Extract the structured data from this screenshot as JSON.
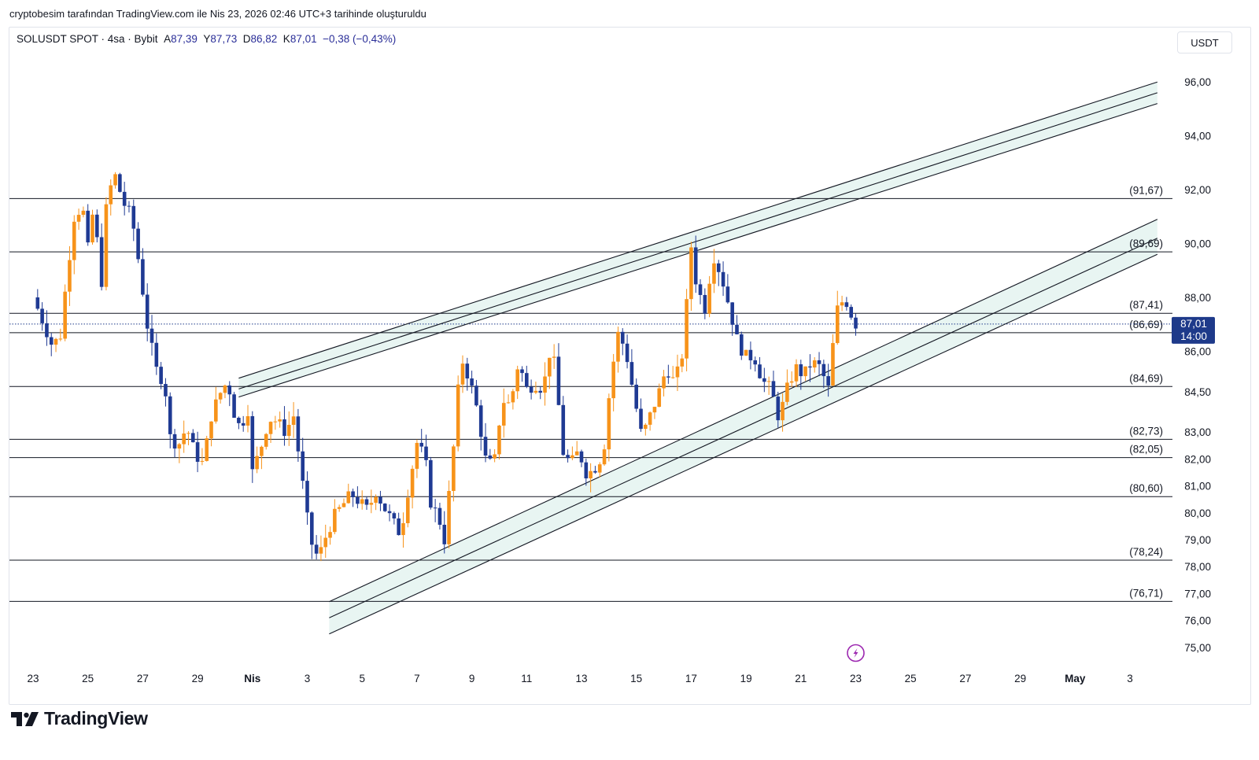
{
  "caption": "cryptobesim tarafından TradingView.com ile Nis 23, 2026 02:46 UTC+3 tarihinde oluşturuldu",
  "legend": {
    "symbol": "SOLUSDT SPOT · 4sa · Bybit",
    "open_label": "A",
    "open": "87,39",
    "high_label": "Y",
    "high": "87,73",
    "low_label": "D",
    "low": "86,82",
    "close_label": "K",
    "close": "87,01",
    "change": "−0,38 (−0,43%)"
  },
  "currency_button": "USDT",
  "price_tag": {
    "price": "87,01",
    "countdown": "14:00"
  },
  "brand": "TradingView",
  "colors": {
    "up": "#f7931a",
    "down": "#1f3a93",
    "line": "#131722",
    "channel_fill": "#e6f4f1",
    "accent": "#1e3a8a",
    "flash": "#9c27b0"
  },
  "chart_data": {
    "type": "candlestick",
    "timeframe": "4sa",
    "ylim": [
      74.5,
      97.0
    ],
    "y_ticks": [
      "96,00",
      "94,00",
      "92,00",
      "90,00",
      "88,00",
      "86,00",
      "84,50",
      "83,00",
      "82,00",
      "81,00",
      "80,00",
      "79,00",
      "78,00",
      "77,00",
      "76,00",
      "75,00"
    ],
    "x_ticks": [
      "23",
      "25",
      "27",
      "29",
      "Nis",
      "3",
      "5",
      "7",
      "9",
      "11",
      "13",
      "15",
      "17",
      "19",
      "21",
      "23",
      "25",
      "27",
      "29",
      "May",
      "3"
    ],
    "x_tick_days": [
      0,
      2,
      4,
      6,
      8,
      10,
      12,
      14,
      16,
      18,
      20,
      22,
      24,
      26,
      28,
      30,
      32,
      34,
      36,
      38,
      40
    ],
    "levels": [
      {
        "price": 91.67,
        "label": "(91,67)"
      },
      {
        "price": 89.69,
        "label": "(89,69)"
      },
      {
        "price": 87.41,
        "label": "(87,41)"
      },
      {
        "price": 86.69,
        "label": "(86,69)"
      },
      {
        "price": 84.69,
        "label": "(84,69)"
      },
      {
        "price": 82.73,
        "label": "(82,73)"
      },
      {
        "price": 82.05,
        "label": "(82,05)"
      },
      {
        "price": 80.6,
        "label": "(80,60)"
      },
      {
        "price": 78.24,
        "label": "(78,24)"
      },
      {
        "price": 76.71,
        "label": "(76,71)"
      }
    ],
    "current_price": 87.01,
    "upper_channel": [
      {
        "x0": 7.5,
        "y0": 85.0,
        "x1": 41.0,
        "y1": 96.0
      },
      {
        "x0": 7.5,
        "y0": 84.6,
        "x1": 41.0,
        "y1": 95.6
      },
      {
        "x0": 7.5,
        "y0": 84.3,
        "x1": 41.0,
        "y1": 95.2
      }
    ],
    "lower_channel": [
      {
        "x0": 10.8,
        "y0": 76.7,
        "x1": 41.0,
        "y1": 90.9
      },
      {
        "x0": 10.8,
        "y0": 76.1,
        "x1": 41.0,
        "y1": 90.2
      },
      {
        "x0": 10.8,
        "y0": 75.5,
        "x1": 41.0,
        "y1": 89.6
      }
    ],
    "waypoints": [
      [
        0.0,
        88.0
      ],
      [
        0.4,
        87.0
      ],
      [
        0.7,
        86.2
      ],
      [
        1.0,
        86.6
      ],
      [
        1.2,
        88.5
      ],
      [
        1.5,
        91.0
      ],
      [
        1.8,
        91.4
      ],
      [
        2.0,
        89.8
      ],
      [
        2.2,
        91.3
      ],
      [
        2.5,
        88.6
      ],
      [
        2.7,
        91.8
      ],
      [
        3.0,
        92.5
      ],
      [
        3.3,
        91.5
      ],
      [
        3.6,
        91.0
      ],
      [
        3.9,
        89.0
      ],
      [
        4.2,
        86.7
      ],
      [
        4.5,
        85.3
      ],
      [
        4.8,
        84.8
      ],
      [
        5.0,
        82.8
      ],
      [
        5.3,
        82.5
      ],
      [
        5.6,
        83.2
      ],
      [
        5.9,
        82.2
      ],
      [
        6.2,
        81.8
      ],
      [
        6.5,
        83.6
      ],
      [
        6.8,
        84.4
      ],
      [
        7.1,
        84.9
      ],
      [
        7.3,
        83.8
      ],
      [
        7.6,
        83.0
      ],
      [
        7.8,
        84.3
      ],
      [
        8.0,
        81.5
      ],
      [
        8.3,
        82.4
      ],
      [
        8.6,
        83.5
      ],
      [
        8.9,
        83.4
      ],
      [
        9.2,
        83.0
      ],
      [
        9.5,
        83.6
      ],
      [
        9.8,
        81.3
      ],
      [
        10.1,
        79.0
      ],
      [
        10.4,
        78.3
      ],
      [
        10.7,
        79.2
      ],
      [
        11.0,
        79.9
      ],
      [
        11.3,
        80.3
      ],
      [
        11.6,
        80.7
      ],
      [
        11.9,
        80.4
      ],
      [
        12.2,
        80.1
      ],
      [
        12.5,
        80.8
      ],
      [
        12.8,
        80.2
      ],
      [
        13.1,
        79.7
      ],
      [
        13.4,
        79.2
      ],
      [
        13.7,
        81.0
      ],
      [
        14.0,
        82.6
      ],
      [
        14.3,
        82.0
      ],
      [
        14.5,
        80.4
      ],
      [
        14.8,
        79.8
      ],
      [
        15.0,
        79.0
      ],
      [
        15.3,
        82.0
      ],
      [
        15.6,
        85.8
      ],
      [
        15.9,
        85.0
      ],
      [
        16.2,
        83.8
      ],
      [
        16.5,
        82.0
      ],
      [
        16.8,
        81.7
      ],
      [
        17.1,
        84.2
      ],
      [
        17.4,
        84.0
      ],
      [
        17.7,
        85.6
      ],
      [
        18.0,
        84.6
      ],
      [
        18.3,
        84.8
      ],
      [
        18.6,
        84.6
      ],
      [
        18.9,
        86.3
      ],
      [
        19.1,
        84.8
      ],
      [
        19.3,
        82.3
      ],
      [
        19.6,
        81.8
      ],
      [
        19.9,
        82.3
      ],
      [
        20.2,
        81.4
      ],
      [
        20.5,
        81.7
      ],
      [
        20.8,
        82.2
      ],
      [
        21.0,
        84.3
      ],
      [
        21.3,
        86.7
      ],
      [
        21.6,
        86.1
      ],
      [
        21.9,
        84.4
      ],
      [
        22.2,
        82.8
      ],
      [
        22.5,
        83.6
      ],
      [
        22.8,
        84.4
      ],
      [
        23.1,
        85.4
      ],
      [
        23.4,
        84.8
      ],
      [
        23.7,
        86.0
      ],
      [
        24.0,
        89.9
      ],
      [
        24.2,
        88.4
      ],
      [
        24.5,
        87.6
      ],
      [
        24.8,
        89.6
      ],
      [
        25.1,
        88.8
      ],
      [
        25.4,
        87.6
      ],
      [
        25.7,
        86.3
      ],
      [
        26.0,
        85.8
      ],
      [
        26.3,
        85.8
      ],
      [
        26.6,
        84.9
      ],
      [
        26.9,
        84.6
      ],
      [
        27.2,
        83.5
      ],
      [
        27.5,
        84.6
      ],
      [
        27.8,
        85.4
      ],
      [
        28.1,
        85.1
      ],
      [
        28.4,
        85.6
      ],
      [
        28.7,
        85.4
      ],
      [
        29.0,
        84.6
      ],
      [
        29.3,
        87.5
      ],
      [
        29.6,
        88.0
      ],
      [
        29.9,
        87.2
      ],
      [
        30.0,
        87.01
      ]
    ]
  }
}
